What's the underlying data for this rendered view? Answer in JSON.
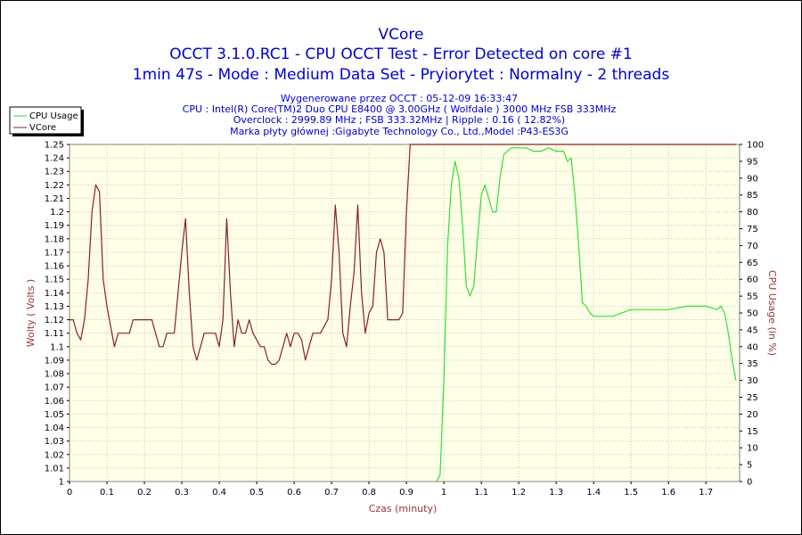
{
  "chart_data": {
    "type": "line",
    "title": "VCore",
    "subtitle1": "OCCT 3.1.0.RC1 - CPU OCCT Test - Error Detected on core #1",
    "subtitle2": "1min 47s - Mode : Medium Data Set - Pryiorytet : Normalny - 2 threads",
    "info": [
      "Wygenerowane przez OCCT : 05-12-09 16:33:47",
      "CPU : Intel(R) Core(TM)2 Duo CPU E8400 @ 3.00GHz ( Wolfdale ) 3000 MHz FSB 333MHz",
      "Overclock : 2999.89 MHz ; FSB 333.32MHz | Ripple : 0.16 ( 12.82%)",
      "Marka płyty głównej :Gigabyte Technology Co., Ltd.,Model :P43-ES3G"
    ],
    "xlabel": "Czas (minuty)",
    "ylabel_left": "Wolty ( Volts )",
    "ylabel_right": "CPU Usage (in %)",
    "xlim": [
      0,
      1.79
    ],
    "ylim_left": [
      1.0,
      1.25
    ],
    "ylim_right": [
      0,
      100
    ],
    "x_ticks": [
      "0",
      "0.1",
      "0.2",
      "0.3",
      "0.4",
      "0.5",
      "0.6",
      "0.7",
      "0.8",
      "0.9",
      "1",
      "1.1",
      "1.2",
      "1.3",
      "1.4",
      "1.5",
      "1.6",
      "1.7"
    ],
    "y_left_ticks": [
      "1",
      "1.01",
      "1.02",
      "1.03",
      "1.04",
      "1.05",
      "1.06",
      "1.07",
      "1.08",
      "1.09",
      "1.1",
      "1.11",
      "1.12",
      "1.13",
      "1.14",
      "1.15",
      "1.16",
      "1.17",
      "1.18",
      "1.19",
      "1.2",
      "1.21",
      "1.22",
      "1.23",
      "1.24",
      "1.25"
    ],
    "y_right_ticks": [
      "0",
      "5",
      "10",
      "15",
      "20",
      "25",
      "30",
      "35",
      "40",
      "45",
      "50",
      "55",
      "60",
      "65",
      "70",
      "75",
      "80",
      "85",
      "90",
      "95",
      "100"
    ],
    "legend_placement": "top-left",
    "grid": true,
    "series": [
      {
        "name": "CPU Usage",
        "axis": "right",
        "color": "#33dd33",
        "x": [
          0.98,
          0.99,
          1.0,
          1.01,
          1.02,
          1.03,
          1.04,
          1.05,
          1.06,
          1.07,
          1.08,
          1.09,
          1.1,
          1.11,
          1.12,
          1.13,
          1.14,
          1.15,
          1.16,
          1.17,
          1.18,
          1.19,
          1.2,
          1.22,
          1.24,
          1.26,
          1.28,
          1.3,
          1.32,
          1.33,
          1.34,
          1.35,
          1.36,
          1.37,
          1.38,
          1.39,
          1.4,
          1.45,
          1.5,
          1.55,
          1.6,
          1.65,
          1.7,
          1.73,
          1.74,
          1.75,
          1.76,
          1.77,
          1.78
        ],
        "values": [
          0,
          2,
          30,
          70,
          88,
          95,
          90,
          76,
          58,
          55,
          58,
          72,
          85,
          88,
          84,
          80,
          80,
          90,
          97,
          98,
          99,
          99,
          99,
          99,
          98,
          98,
          99,
          98,
          98,
          95,
          96,
          85,
          70,
          53,
          52,
          50,
          49,
          49,
          51,
          51,
          51,
          52,
          52,
          51,
          52,
          50,
          44,
          36,
          30
        ]
      },
      {
        "name": "VCore",
        "axis": "left",
        "color": "#882222",
        "x": [
          0.0,
          0.01,
          0.02,
          0.03,
          0.04,
          0.05,
          0.06,
          0.07,
          0.08,
          0.09,
          0.1,
          0.11,
          0.12,
          0.13,
          0.14,
          0.15,
          0.16,
          0.17,
          0.18,
          0.19,
          0.2,
          0.22,
          0.24,
          0.25,
          0.26,
          0.27,
          0.28,
          0.29,
          0.3,
          0.31,
          0.32,
          0.33,
          0.34,
          0.35,
          0.36,
          0.37,
          0.38,
          0.39,
          0.4,
          0.41,
          0.42,
          0.43,
          0.44,
          0.45,
          0.46,
          0.47,
          0.48,
          0.49,
          0.5,
          0.51,
          0.52,
          0.53,
          0.54,
          0.55,
          0.56,
          0.57,
          0.58,
          0.59,
          0.6,
          0.61,
          0.62,
          0.63,
          0.64,
          0.65,
          0.66,
          0.67,
          0.68,
          0.69,
          0.7,
          0.71,
          0.72,
          0.73,
          0.74,
          0.75,
          0.76,
          0.77,
          0.78,
          0.79,
          0.8,
          0.81,
          0.82,
          0.83,
          0.84,
          0.85,
          0.86,
          0.87,
          0.88,
          0.89,
          0.9,
          0.91,
          0.92,
          0.93,
          0.94,
          0.95,
          0.96,
          0.97,
          0.98,
          0.99,
          1.0,
          1.01,
          1.02,
          1.03,
          1.05,
          1.1,
          1.2,
          1.3,
          1.4,
          1.5,
          1.6,
          1.7,
          1.78
        ],
        "values": [
          1.12,
          1.12,
          1.11,
          1.105,
          1.12,
          1.15,
          1.2,
          1.22,
          1.215,
          1.15,
          1.13,
          1.115,
          1.1,
          1.11,
          1.11,
          1.11,
          1.11,
          1.12,
          1.12,
          1.12,
          1.12,
          1.12,
          1.1,
          1.1,
          1.11,
          1.11,
          1.11,
          1.14,
          1.17,
          1.195,
          1.14,
          1.1,
          1.09,
          1.1,
          1.11,
          1.11,
          1.11,
          1.11,
          1.1,
          1.12,
          1.195,
          1.14,
          1.1,
          1.12,
          1.11,
          1.11,
          1.12,
          1.11,
          1.105,
          1.1,
          1.1,
          1.09,
          1.087,
          1.087,
          1.09,
          1.1,
          1.11,
          1.1,
          1.11,
          1.11,
          1.105,
          1.09,
          1.1,
          1.11,
          1.11,
          1.11,
          1.115,
          1.12,
          1.15,
          1.205,
          1.17,
          1.11,
          1.1,
          1.13,
          1.155,
          1.205,
          1.14,
          1.11,
          1.125,
          1.13,
          1.17,
          1.18,
          1.17,
          1.12,
          1.12,
          1.12,
          1.12,
          1.125,
          1.2,
          1.25,
          1.25,
          1.25,
          1.25,
          1.25,
          1.25,
          1.25,
          1.25,
          1.25,
          1.25,
          1.25,
          1.25,
          1.25,
          1.25,
          1.25,
          1.25,
          1.25,
          1.25,
          1.25,
          1.25,
          1.25,
          1.25
        ]
      }
    ]
  }
}
